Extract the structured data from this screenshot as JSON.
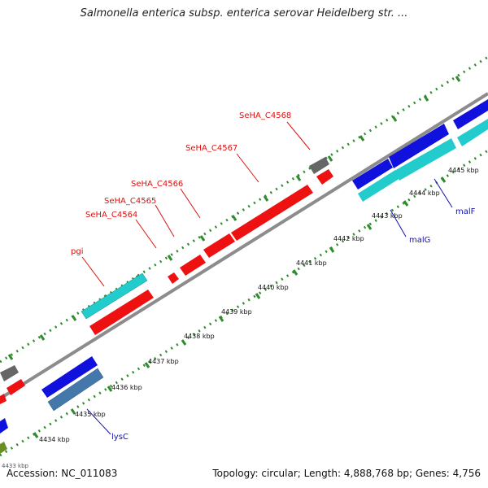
{
  "title": "Salmonella enterica subsp. enterica serovar Heidelberg str. ...",
  "footer": {
    "accession": "Accession: NC_011083",
    "summary": "Topology: circular; Length: 4,888,768 bp; Genes: 4,756"
  },
  "colors": {
    "background": "#ffffff",
    "backbone": "#8c8c8c",
    "tick": "#2e8b2e",
    "forward_gene_red": "#ee1111",
    "cyan_gene": "#22cccc",
    "blue_gene": "#1111dd",
    "steelblue_gene": "#4477aa",
    "gray_gene": "#666666",
    "label_red": "#dd1111",
    "label_blue": "#1111aa",
    "olive_gene": "#6b8e23"
  },
  "axis": {
    "unit": "kbp",
    "ticks": [
      "4434 kbp",
      "4435 kbp",
      "4436 kbp",
      "4437 kbp",
      "4438 kbp",
      "4439 kbp",
      "4440 kbp",
      "4441 kbp",
      "4442 kbp",
      "4443 kbp",
      "4444 kbp",
      "4445 kbp"
    ],
    "partial_tick": "4433 kbp"
  },
  "gene_labels": {
    "red": [
      "SeHA_C4568",
      "SeHA_C4567",
      "SeHA_C4566",
      "SeHA_C4565",
      "SeHA_C4564",
      "pgi"
    ],
    "blue": [
      "malF",
      "malG",
      "lysC"
    ]
  }
}
